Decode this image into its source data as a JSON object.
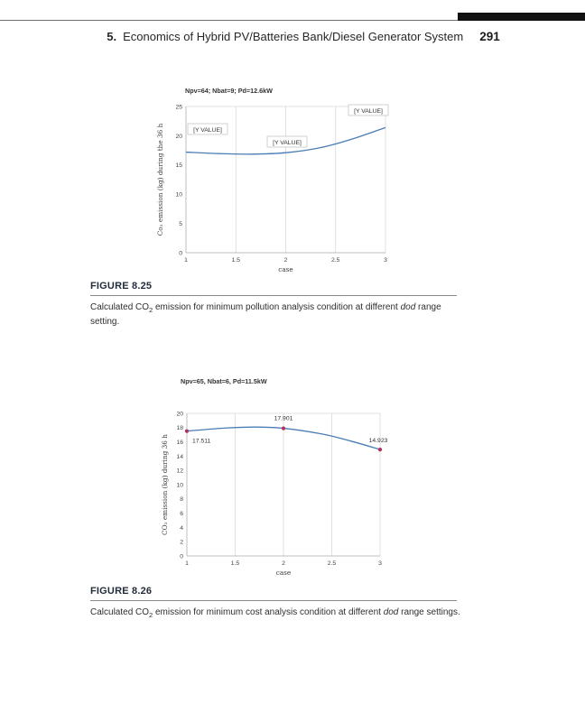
{
  "header": {
    "chapter_number": "5.",
    "chapter_title": "Economics of Hybrid PV/Batteries Bank/Diesel Generator System",
    "page_number": "291"
  },
  "figures": [
    {
      "label": "FIGURE 8.25",
      "caption_pre": "Calculated CO",
      "caption_sub": "2",
      "caption_mid": " emission for minimum pollution analysis condition at different ",
      "caption_italic": "dod",
      "caption_post": " range setting."
    },
    {
      "label": "FIGURE 8.26",
      "caption_pre": "Calculated CO",
      "caption_sub": "2",
      "caption_mid": " emission for minimum cost analysis condition at different ",
      "caption_italic": "dod",
      "caption_post": " range settings."
    }
  ],
  "chart_data": [
    {
      "type": "line",
      "title": "Npv=64; Nbat=9; Pd=12.6kW",
      "xlabel": "case",
      "ylabel": "Co₂ emission (kg) during the 36 h",
      "x": [
        1,
        2,
        3
      ],
      "values": [
        17.2,
        17.1,
        21.4
      ],
      "data_labels": [
        "[Y VALUE]",
        "[Y VALUE]",
        "[Y VALUE]"
      ],
      "label_boxes": true,
      "markers": false,
      "xlim": [
        1,
        3
      ],
      "ylim": [
        0,
        25
      ],
      "x_ticks": [
        1,
        1.5,
        2,
        2.5,
        3
      ],
      "y_ticks": [
        0,
        5,
        10,
        15,
        20,
        25
      ],
      "grid": "vertical",
      "legend": "none",
      "line_color": "#4a7cb5",
      "curve": {
        "x": [
          1,
          1.33,
          1.66,
          2,
          2.33,
          2.66,
          3
        ],
        "y": [
          17.2,
          16.95,
          16.85,
          17.1,
          17.9,
          19.4,
          21.4
        ]
      }
    },
    {
      "type": "line",
      "title": "Npv=65, Nbat=6, Pd=11.5kW",
      "xlabel": "case",
      "ylabel": "CO₂ emission (kg) during 36 h",
      "x": [
        1,
        2,
        3
      ],
      "values": [
        17.511,
        17.901,
        14.923
      ],
      "data_labels": [
        "17.511",
        "17.901",
        "14.923"
      ],
      "label_boxes": false,
      "markers": true,
      "marker_color": "#b03060",
      "xlim": [
        1,
        3
      ],
      "ylim": [
        0,
        20
      ],
      "x_ticks": [
        1,
        1.5,
        2,
        2.5,
        3
      ],
      "y_ticks": [
        0,
        2,
        4,
        6,
        8,
        10,
        12,
        14,
        16,
        18,
        20
      ],
      "grid": "vertical",
      "legend": "none",
      "line_color": "#4a7cb5",
      "curve": {
        "x": [
          1,
          1.35,
          1.7,
          2,
          2.4,
          2.7,
          3
        ],
        "y": [
          17.511,
          17.9,
          18.08,
          17.901,
          17.1,
          16.1,
          14.923
        ]
      }
    }
  ]
}
